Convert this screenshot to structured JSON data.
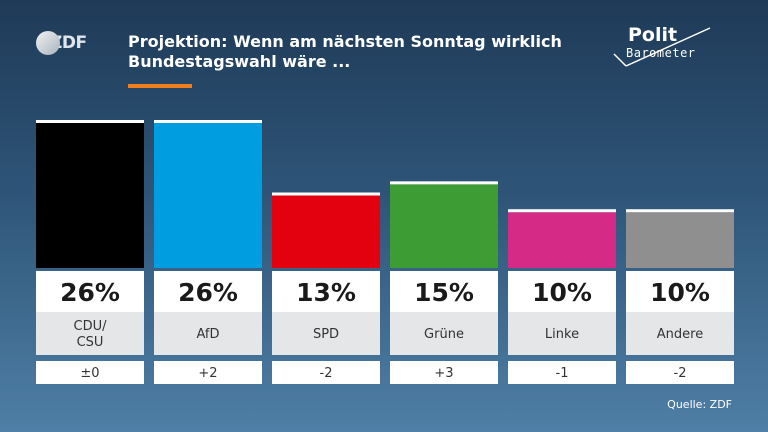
{
  "header": {
    "logo_text": "ZDF",
    "title_line1": "Projektion: Wenn am nächsten Sonntag wirklich",
    "title_line2": "Bundestagswahl wäre ...",
    "brand_top": "Polit",
    "brand_bottom": "Barometer"
  },
  "source": "Quelle: ZDF",
  "colors": {
    "orange_accent": "#f07d1e"
  },
  "chart_data": {
    "type": "bar",
    "title": "Projektion: Wenn am nächsten Sonntag wirklich Bundestagswahl wäre ...",
    "categories": [
      "CDU/\nCSU",
      "AfD",
      "SPD",
      "Grüne",
      "Linke",
      "Andere"
    ],
    "values": [
      26,
      26,
      13,
      15,
      10,
      10
    ],
    "value_labels": [
      "26%",
      "26%",
      "13%",
      "15%",
      "10%",
      "10%"
    ],
    "changes": [
      "±0",
      "+2",
      "-2",
      "+3",
      "-1",
      "-2"
    ],
    "colors": [
      "#000000",
      "#009ee0",
      "#e3000f",
      "#3e9c35",
      "#d62a87",
      "#8f8f8f"
    ],
    "ylim": [
      0,
      26
    ],
    "grid": false,
    "legend": "none"
  }
}
